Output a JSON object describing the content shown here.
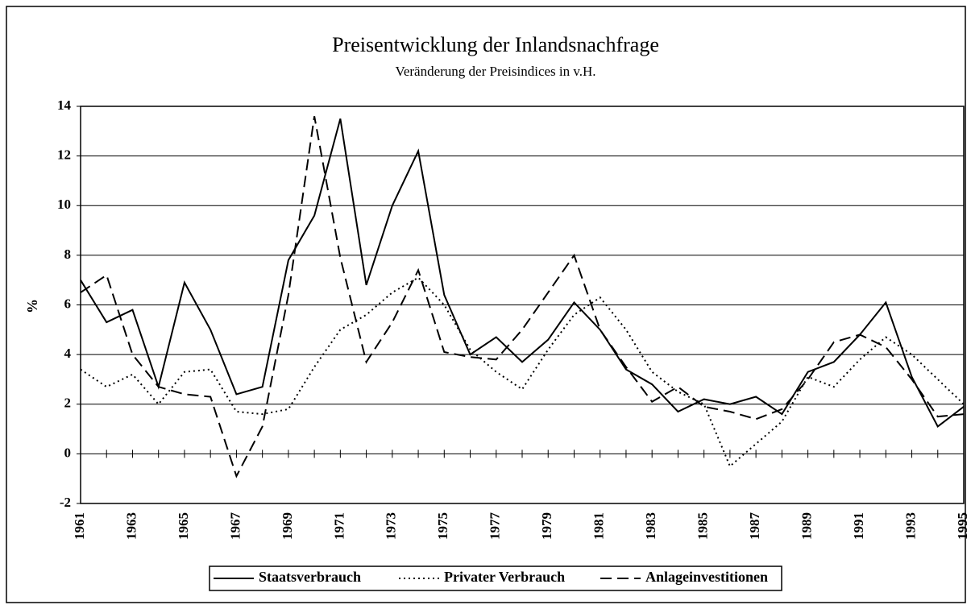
{
  "chart_data": {
    "type": "line",
    "title": "Preisentwicklung der Inlandsnachfrage",
    "subtitle": "Veränderung der Preisindices in v.H.",
    "ylabel": "%",
    "x": [
      1961,
      1962,
      1963,
      1964,
      1965,
      1966,
      1967,
      1968,
      1969,
      1970,
      1971,
      1972,
      1973,
      1974,
      1975,
      1976,
      1977,
      1978,
      1979,
      1980,
      1981,
      1982,
      1983,
      1984,
      1985,
      1986,
      1987,
      1988,
      1989,
      1990,
      1991,
      1992,
      1993,
      1994,
      1995
    ],
    "xlim": [
      1961,
      1995
    ],
    "xticks": [
      1961,
      1963,
      1965,
      1967,
      1969,
      1971,
      1973,
      1975,
      1977,
      1979,
      1981,
      1983,
      1985,
      1987,
      1989,
      1991,
      1993,
      1995
    ],
    "ylim": [
      -2,
      14
    ],
    "yticks": [
      -2,
      0,
      2,
      4,
      6,
      8,
      10,
      12,
      14
    ],
    "grid": true,
    "legend": "bottom",
    "series": [
      {
        "name": "Staatsverbrauch",
        "color": "#000000",
        "dash": "solid",
        "values": [
          7.0,
          5.3,
          5.8,
          2.7,
          6.9,
          5.0,
          2.4,
          2.7,
          7.8,
          9.6,
          13.5,
          6.8,
          10.0,
          12.2,
          6.4,
          4.0,
          4.7,
          3.7,
          4.6,
          6.1,
          5.0,
          3.4,
          2.8,
          1.7,
          2.2,
          2.0,
          2.3,
          1.6,
          3.3,
          3.7,
          4.8,
          6.1,
          3.1,
          1.1,
          1.9
        ]
      },
      {
        "name": "Privater Verbrauch",
        "color": "#000000",
        "dash": "dotted",
        "values": [
          3.4,
          2.7,
          3.2,
          2.0,
          3.3,
          3.4,
          1.7,
          1.6,
          1.8,
          3.5,
          5.0,
          5.6,
          6.5,
          7.1,
          6.0,
          4.2,
          3.3,
          2.6,
          4.2,
          5.6,
          6.3,
          5.0,
          3.3,
          2.5,
          2.0,
          -0.5,
          0.4,
          1.3,
          3.1,
          2.7,
          3.8,
          4.7,
          4.0,
          3.0,
          2.0
        ]
      },
      {
        "name": "Anlageinvestitionen",
        "color": "#000000",
        "dash": "dashed",
        "values": [
          6.5,
          7.2,
          4.0,
          2.7,
          2.4,
          2.3,
          -0.9,
          1.1,
          6.4,
          13.6,
          7.9,
          3.7,
          5.3,
          7.4,
          4.1,
          3.9,
          3.8,
          5.0,
          6.5,
          8.0,
          5.0,
          3.5,
          2.1,
          2.7,
          1.9,
          1.7,
          1.4,
          1.8,
          3.0,
          4.5,
          4.8,
          4.3,
          3.0,
          1.5,
          1.6
        ]
      }
    ]
  }
}
